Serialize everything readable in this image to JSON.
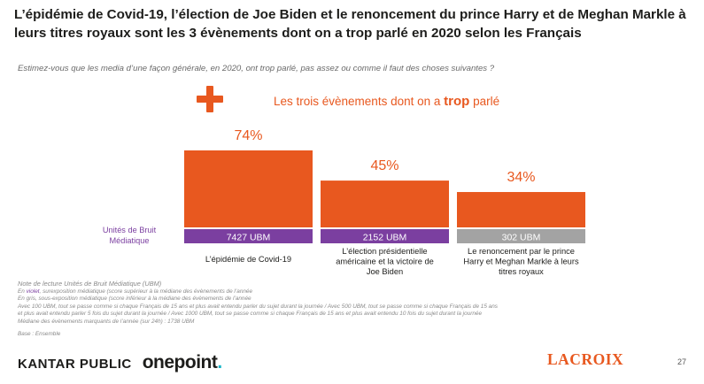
{
  "title": "L’épidémie de Covid-19, l’élection de Joe Biden et le renoncement du prince Harry et de Meghan Markle à leurs titres royaux sont les 3 évènements dont on a trop parlé en 2020 selon les Français",
  "subtitle": "Estimez-vous que les media d’une façon générale, en 2020, ont trop parlé, pas assez ou comme il faut des choses suivantes ?",
  "headline": {
    "prefix": "Les trois évènements dont on a",
    "emphasis": "trop",
    "suffix": "parlé"
  },
  "ubm_label": "Unités de Bruit Médiatique",
  "colors": {
    "bar": "#e8581f",
    "ubm_purple": "#7b3fa0",
    "ubm_grey": "#a3a3a3",
    "text_dark": "#1d1d1b"
  },
  "chart_data": {
    "type": "bar",
    "ylim": [
      0,
      100
    ],
    "categories": [
      "L’épidémie de Covid-19",
      "L’élection présidentielle américaine et la victoire de Joe Biden",
      "Le renoncement par le prince Harry et Meghan Markle à leurs titres royaux"
    ],
    "category_lines": [
      [
        "L’épidémie de Covid-19"
      ],
      [
        "L’élection présidentielle",
        "américaine et la victoire de",
        "Joe Biden"
      ],
      [
        "Le renoncement par le prince",
        "Harry et Meghan Markle à leurs",
        "titres royaux"
      ]
    ],
    "values": [
      74,
      45,
      34
    ],
    "value_labels": [
      "74%",
      "45%",
      "34%"
    ],
    "ubm": [
      {
        "label": "7427 UBM",
        "value": 7427,
        "color": "#7b3fa0"
      },
      {
        "label": "2152 UBM",
        "value": 2152,
        "color": "#7b3fa0"
      },
      {
        "label": "302 UBM",
        "value": 302,
        "color": "#a3a3a3"
      }
    ]
  },
  "note": {
    "title": "Note de lecture Unités de Bruit Médiatique (UBM)",
    "line1_prefix": "En",
    "line1_color": "violet",
    "line1_rest": ", surexposition médiatique (score supérieur à la médiane des évènements de l’année",
    "line2": "En gris, sous-exposition médiatique (score inférieur à la médiane des évènements de l’année",
    "line3": "Avec 100 UBM, tout se passe comme si chaque Français de 15 ans et plus avait entendu parler du sujet durant la journée / Avec 500 UBM, tout se passe comme si chaque Français de 15 ans",
    "line4": "et plus avait entendu parler 5 fois du sujet durant la journée / Avec 1000 UBM, tout se passe comme si chaque Français de 15 ans et plus avait entendu 10 fois du sujet durant la journée",
    "line5": "Médiane des évènements marquants de l’année (sur 24h) : 1738 UBM",
    "base": "Base : Ensemble"
  },
  "footer": {
    "kantar": "KANTAR PUBLIC",
    "onepoint": "onepoint",
    "onepoint_dot": ".",
    "lacroix": "LACROIX",
    "page": "27"
  }
}
